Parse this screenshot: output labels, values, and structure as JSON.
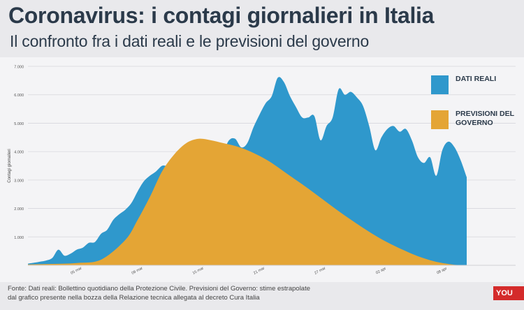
{
  "header": {
    "title": "Coronavirus: i contagi giornalieri in Italia",
    "subtitle": "Il confronto fra i dati reali e le previsioni del governo"
  },
  "legend": {
    "reali": "DATI REALI",
    "previsioni": "PREVISIONI DEL GOVERNO"
  },
  "footer": {
    "source_line1": "Fonte: Dati reali: Bollettino quotidiano della Protezione Civile. Previsioni del Governo: stime estrapolate",
    "source_line2": "dal grafico presente nella bozza della Relazione tecnica allegata al decreto Cura Italia",
    "badge": "YOU TR"
  },
  "colors": {
    "reali": "#2f98cc",
    "previsioni": "#e4a535",
    "text": "#2b3a4a"
  },
  "chart_data": {
    "type": "area",
    "ylabel": "Contagi giornalieri",
    "ylim": [
      0,
      7000
    ],
    "yticks": [
      1000,
      2000,
      3000,
      4000,
      5000,
      6000,
      7000
    ],
    "ytick_labels": [
      "1.000",
      "2.000",
      "3.000",
      "4.000",
      "5.000",
      "6.000",
      "7.000"
    ],
    "x_range": [
      0,
      72
    ],
    "xticks": [
      {
        "x": 8,
        "label": "05 mar"
      },
      {
        "x": 18,
        "label": "09 mar"
      },
      {
        "x": 28,
        "label": "15 mar"
      },
      {
        "x": 38,
        "label": "21 mar"
      },
      {
        "x": 48,
        "label": "27 mar"
      },
      {
        "x": 58,
        "label": "02 apr"
      },
      {
        "x": 68,
        "label": "08 apr"
      }
    ],
    "series": [
      {
        "name": "DATI REALI",
        "x": [
          0,
          1,
          2,
          3,
          4,
          5,
          6,
          7,
          8,
          9,
          10,
          11,
          12,
          13,
          14,
          15,
          16,
          17,
          18,
          19,
          20,
          21,
          22,
          23,
          24,
          25,
          26,
          27,
          28,
          29,
          30,
          31,
          32,
          33,
          34,
          35,
          36,
          37,
          38,
          39,
          40,
          41,
          42,
          43,
          44,
          45,
          46,
          47,
          48,
          49,
          50,
          51,
          52,
          53,
          54,
          55,
          56,
          57,
          58,
          59,
          60,
          61,
          62,
          63,
          64,
          65,
          66,
          67,
          68,
          69,
          70,
          71,
          72
        ],
        "values": [
          60,
          90,
          130,
          170,
          260,
          550,
          340,
          410,
          550,
          620,
          790,
          820,
          1110,
          1250,
          1600,
          1800,
          1960,
          2200,
          2600,
          2950,
          3150,
          3300,
          3500,
          3500,
          3630,
          3800,
          4050,
          4200,
          3500,
          3200,
          3250,
          3600,
          3950,
          4400,
          4450,
          4150,
          4300,
          4850,
          5300,
          5700,
          5950,
          6600,
          6450,
          5950,
          5560,
          5200,
          5200,
          5250,
          4400,
          4900,
          5200,
          6200,
          6000,
          6100,
          5900,
          5600,
          4900,
          4050,
          4500,
          4800,
          4900,
          4700,
          4800,
          4400,
          3800,
          3600,
          3800,
          3150,
          4050,
          4350,
          4150,
          3700,
          3100
        ]
      },
      {
        "name": "PREVISIONI DEL GOVERNO",
        "x": [
          0,
          4,
          8,
          12,
          16,
          18,
          20,
          22,
          24,
          26,
          28,
          30,
          32,
          34,
          36,
          38,
          40,
          42,
          44,
          46,
          48,
          50,
          52,
          54,
          56,
          58,
          60,
          62,
          64,
          66,
          68,
          70,
          72
        ],
        "values": [
          30,
          50,
          80,
          200,
          900,
          1600,
          2400,
          3300,
          3900,
          4300,
          4450,
          4400,
          4300,
          4200,
          4050,
          3850,
          3600,
          3300,
          3000,
          2700,
          2380,
          2060,
          1750,
          1460,
          1180,
          920,
          700,
          500,
          320,
          180,
          80,
          20,
          0
        ]
      }
    ],
    "grid": true
  }
}
